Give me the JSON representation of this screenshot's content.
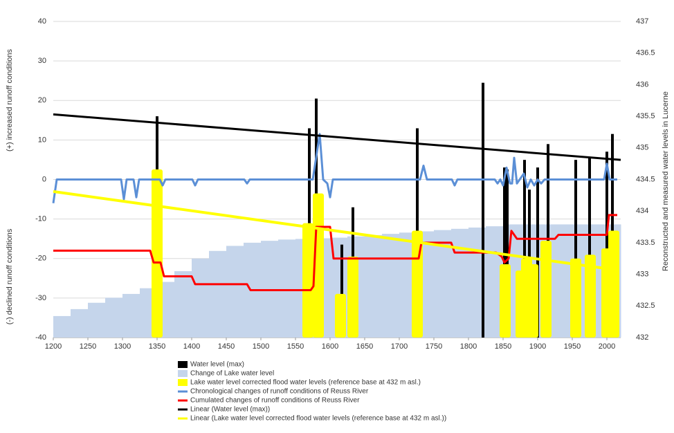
{
  "chart_data": {
    "type": "combo",
    "xlim": [
      1200,
      2020
    ],
    "xticks": [
      1200,
      1250,
      1300,
      1350,
      1400,
      1450,
      1500,
      1550,
      1600,
      1650,
      1700,
      1750,
      1800,
      1850,
      1900,
      1950,
      2000
    ],
    "ylim": [
      -40,
      40
    ],
    "yticks": [
      -40,
      -30,
      -20,
      -10,
      0,
      10,
      20,
      30,
      40
    ],
    "y2lim": [
      432,
      437
    ],
    "y2ticks": [
      432,
      432.5,
      433,
      433.5,
      434,
      434.5,
      435,
      435.5,
      436,
      436.5,
      437
    ],
    "ylabel_top": "(+)  increased runoff conditions",
    "ylabel_bottom": "(-) declined runoff conditions",
    "y2label": "Reconstructed and measured water levels in Lucerne",
    "grid": true,
    "series": [
      {
        "name": "Water level (max)",
        "color": "#000000",
        "type": "bar",
        "axis": "y2",
        "x": [
          1350,
          1570,
          1580,
          1617,
          1633,
          1726,
          1821,
          1852,
          1856,
          1881,
          1888,
          1900,
          1915,
          1955,
          1975,
          2000,
          2008
        ],
        "values": [
          435.5,
          435.31,
          435.78,
          433.47,
          434.06,
          435.31,
          436.03,
          434.69,
          434.66,
          434.81,
          434.34,
          434.69,
          435.06,
          434.81,
          434.84,
          434.94,
          435.22
        ]
      },
      {
        "name": "Change of Lake water level",
        "color": "#c5d5eb",
        "type": "area",
        "axis": "y2",
        "x": [
          1200,
          1225,
          1250,
          1275,
          1300,
          1325,
          1350,
          1375,
          1400,
          1425,
          1450,
          1475,
          1500,
          1525,
          1550,
          1575,
          1600,
          1625,
          1650,
          1675,
          1700,
          1725,
          1750,
          1775,
          1800,
          1825,
          1850
        ],
        "values": [
          432.34,
          432.45,
          432.55,
          432.63,
          432.69,
          432.78,
          432.88,
          433.05,
          433.25,
          433.37,
          433.45,
          433.5,
          433.53,
          433.55,
          433.56,
          433.57,
          433.58,
          433.6,
          433.62,
          433.64,
          433.66,
          433.68,
          433.7,
          433.72,
          433.74,
          433.76,
          433.79
        ]
      },
      {
        "name": "Lake water level corrected flood water levels (reference base at 432 m asl.)",
        "color": "#ffff00",
        "type": "bar",
        "axis": "y2",
        "x": [
          1350,
          1568,
          1583,
          1615,
          1633,
          1726,
          1853,
          1876,
          1884,
          1893,
          1912,
          1955,
          1976,
          2000,
          2010
        ],
        "values": [
          434.66,
          433.81,
          434.28,
          432.69,
          433.28,
          433.69,
          433.16,
          433.06,
          433.25,
          433.16,
          433.53,
          433.25,
          433.31,
          433.41,
          433.69
        ]
      },
      {
        "name": "Chronological changes of runoff conditions of Reuss River",
        "color": "#5b8fd6",
        "type": "line",
        "x": [
          1200,
          1205,
          1210,
          1298,
          1302,
          1306,
          1316,
          1320,
          1324,
          1354,
          1358,
          1362,
          1401,
          1405,
          1409,
          1476,
          1480,
          1484,
          1575,
          1585,
          1590,
          1596,
          1600,
          1604,
          1730,
          1735,
          1740,
          1776,
          1780,
          1784,
          1838,
          1842,
          1846,
          1850,
          1855,
          1860,
          1863,
          1866,
          1870,
          1874,
          1880,
          1885,
          1890,
          1895,
          1900,
          1905,
          1910,
          1996,
          2000,
          2004,
          2015
        ],
        "values": [
          -6,
          0,
          0,
          0,
          -5,
          0,
          0,
          -4.5,
          0,
          0,
          -1.5,
          0,
          0,
          -1.5,
          0,
          0,
          -1,
          0,
          0,
          11.5,
          0,
          -1,
          -4.5,
          0,
          0,
          3.5,
          0,
          0,
          -1.5,
          0,
          0,
          -1,
          0,
          -1.5,
          3,
          -1,
          -1,
          5.5,
          -1,
          0,
          1.5,
          -2,
          0,
          -1.5,
          0,
          -1,
          0,
          0,
          4,
          0,
          0
        ]
      },
      {
        "name": "Cumulated changes of runoff conditions of Reuss River",
        "color": "#ff0000",
        "type": "line",
        "x": [
          1200,
          1340,
          1345,
          1355,
          1360,
          1400,
          1405,
          1480,
          1485,
          1572,
          1576,
          1580,
          1600,
          1605,
          1728,
          1732,
          1775,
          1780,
          1840,
          1848,
          1852,
          1858,
          1862,
          1870,
          1925,
          1930,
          2000,
          2003,
          2015
        ],
        "values": [
          -18,
          -18,
          -21,
          -21,
          -24.5,
          -24.5,
          -26.5,
          -26.5,
          -28,
          -28,
          -27,
          -12,
          -12,
          -20,
          -20,
          -16,
          -16,
          -18.5,
          -18.5,
          -19.5,
          -21,
          -20,
          -13,
          -15,
          -15,
          -14,
          -14,
          -9,
          -9
        ]
      },
      {
        "name": "Linear (Water level (max))",
        "color": "#000000",
        "type": "line",
        "axis": "y2",
        "x": [
          1200,
          2020
        ],
        "values": [
          435.53,
          434.81
        ]
      },
      {
        "name": "Linear (Lake water level corrected flood water levels (reference base at 432 m asl.))",
        "color": "#ffff00",
        "type": "line",
        "axis": "y2",
        "x": [
          1200,
          2000
        ],
        "values": [
          434.31,
          433.09
        ]
      }
    ]
  }
}
